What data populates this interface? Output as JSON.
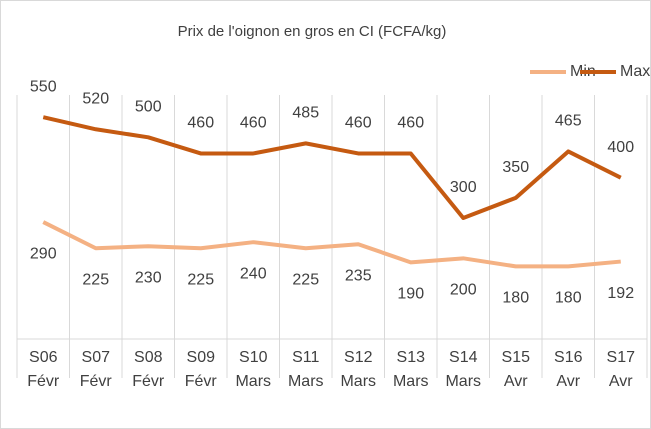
{
  "chart_data": {
    "type": "line",
    "title": "Prix de l'oignon en gros en CI (FCFA/kg)",
    "categories": [
      "S06\nFévr",
      "S07\nFévr",
      "S08\nFévr",
      "S09\nFévr",
      "S10\nMars",
      "S11\nMars",
      "S12\nMars",
      "S13\nMars",
      "S14\nMars",
      "S15\nAvr",
      "S16\nAvr",
      "S17\nAvr"
    ],
    "series": [
      {
        "name": "Min",
        "color": "#f4b183",
        "values": [
          290,
          225,
          230,
          225,
          240,
          225,
          235,
          190,
          200,
          180,
          180,
          192
        ]
      },
      {
        "name": "Max",
        "color": "#c55a11",
        "values": [
          550,
          520,
          500,
          460,
          460,
          485,
          460,
          460,
          300,
          350,
          465,
          400
        ]
      }
    ],
    "ylim": [
      0,
      600
    ],
    "legend": "top"
  }
}
